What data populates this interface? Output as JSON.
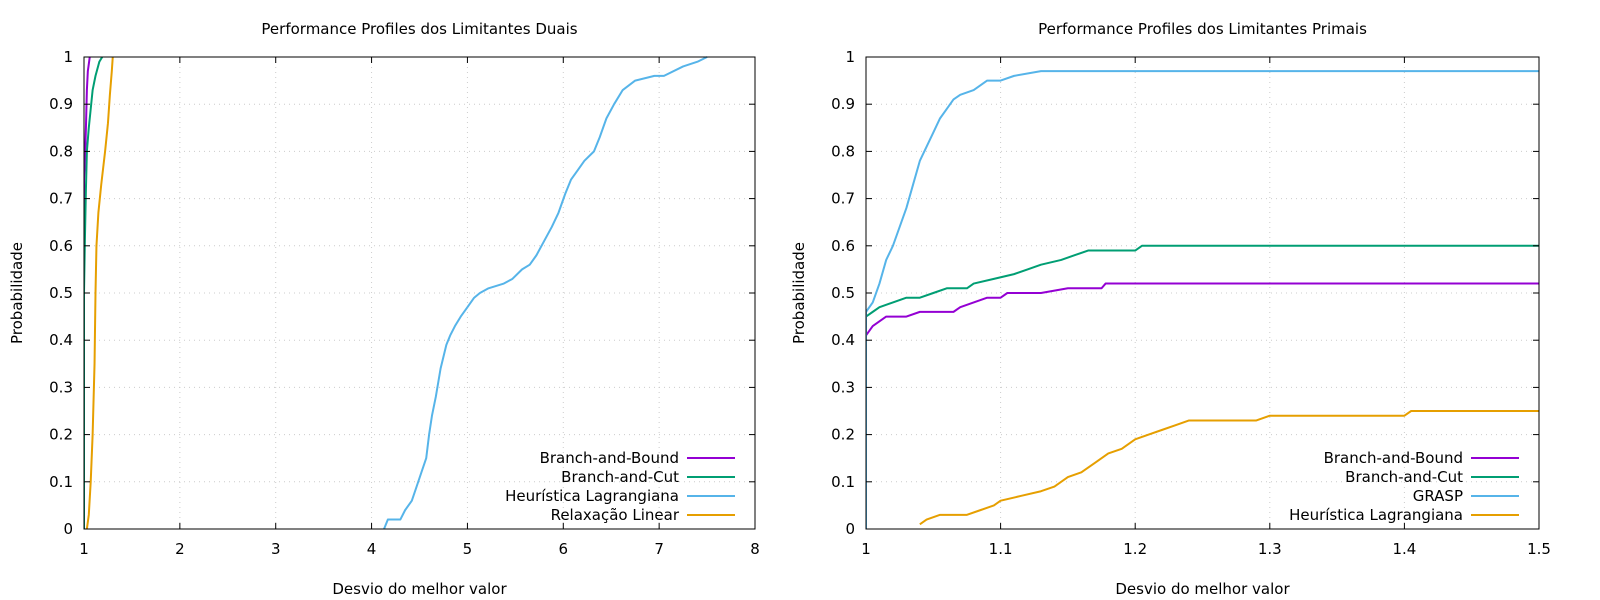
{
  "chart_data": [
    {
      "type": "line",
      "title": "Performance Profiles dos Limitantes Duais",
      "xlabel": "Desvio do melhor valor",
      "ylabel": "Probabilidade",
      "xlim": [
        1,
        8
      ],
      "ylim": [
        0,
        1
      ],
      "xticks": [
        "1",
        "2",
        "3",
        "4",
        "5",
        "6",
        "7",
        "8"
      ],
      "yticks": [
        "0",
        "0.1",
        "0.2",
        "0.3",
        "0.4",
        "0.5",
        "0.6",
        "0.7",
        "0.8",
        "0.9",
        "1"
      ],
      "grid": true,
      "legend_position": "bottom-right",
      "series": [
        {
          "name": "Branch-and-Bound",
          "color": "#9400d3",
          "points": [
            [
              1.0,
              0.0
            ],
            [
              1.0,
              0.74
            ],
            [
              1.01,
              0.78
            ],
            [
              1.02,
              0.85
            ],
            [
              1.03,
              0.93
            ],
            [
              1.04,
              0.97
            ],
            [
              1.06,
              1.0
            ]
          ]
        },
        {
          "name": "Branch-and-Cut",
          "color": "#009e73",
          "points": [
            [
              1.0,
              0.0
            ],
            [
              1.0,
              0.5
            ],
            [
              1.01,
              0.62
            ],
            [
              1.02,
              0.72
            ],
            [
              1.03,
              0.8
            ],
            [
              1.05,
              0.85
            ],
            [
              1.07,
              0.89
            ],
            [
              1.09,
              0.93
            ],
            [
              1.12,
              0.96
            ],
            [
              1.16,
              0.99
            ],
            [
              1.19,
              1.0
            ]
          ]
        },
        {
          "name": "Heurística Lagrangiana",
          "color": "#56b4e9",
          "points": [
            [
              4.13,
              0.0
            ],
            [
              4.17,
              0.02
            ],
            [
              4.3,
              0.02
            ],
            [
              4.35,
              0.04
            ],
            [
              4.42,
              0.06
            ],
            [
              4.47,
              0.09
            ],
            [
              4.52,
              0.12
            ],
            [
              4.57,
              0.15
            ],
            [
              4.6,
              0.2
            ],
            [
              4.63,
              0.24
            ],
            [
              4.67,
              0.28
            ],
            [
              4.72,
              0.34
            ],
            [
              4.78,
              0.39
            ],
            [
              4.82,
              0.41
            ],
            [
              4.87,
              0.43
            ],
            [
              4.93,
              0.45
            ],
            [
              5.0,
              0.47
            ],
            [
              5.07,
              0.49
            ],
            [
              5.13,
              0.5
            ],
            [
              5.22,
              0.51
            ],
            [
              5.38,
              0.52
            ],
            [
              5.47,
              0.53
            ],
            [
              5.57,
              0.55
            ],
            [
              5.65,
              0.56
            ],
            [
              5.72,
              0.58
            ],
            [
              5.8,
              0.61
            ],
            [
              5.88,
              0.64
            ],
            [
              5.95,
              0.67
            ],
            [
              6.02,
              0.71
            ],
            [
              6.08,
              0.74
            ],
            [
              6.15,
              0.76
            ],
            [
              6.22,
              0.78
            ],
            [
              6.32,
              0.8
            ],
            [
              6.38,
              0.83
            ],
            [
              6.45,
              0.87
            ],
            [
              6.53,
              0.9
            ],
            [
              6.62,
              0.93
            ],
            [
              6.75,
              0.95
            ],
            [
              6.95,
              0.96
            ],
            [
              7.05,
              0.96
            ],
            [
              7.25,
              0.98
            ],
            [
              7.4,
              0.99
            ],
            [
              7.5,
              1.0
            ]
          ]
        },
        {
          "name": "Relaxação Linear",
          "color": "#e69f00",
          "points": [
            [
              1.03,
              0.0
            ],
            [
              1.05,
              0.03
            ],
            [
              1.07,
              0.1
            ],
            [
              1.09,
              0.2
            ],
            [
              1.11,
              0.35
            ],
            [
              1.12,
              0.5
            ],
            [
              1.13,
              0.6
            ],
            [
              1.15,
              0.67
            ],
            [
              1.18,
              0.73
            ],
            [
              1.22,
              0.8
            ],
            [
              1.25,
              0.86
            ],
            [
              1.27,
              0.92
            ],
            [
              1.29,
              0.97
            ],
            [
              1.3,
              1.0
            ]
          ]
        }
      ]
    },
    {
      "type": "line",
      "title": "Performance Profiles dos Limitantes Primais",
      "xlabel": "Desvio do melhor valor",
      "ylabel": "Probabilidade",
      "xlim": [
        1,
        1.5
      ],
      "ylim": [
        0,
        1
      ],
      "xticks": [
        "1",
        "1.1",
        "1.2",
        "1.3",
        "1.4",
        "1.5"
      ],
      "yticks": [
        "0",
        "0.1",
        "0.2",
        "0.3",
        "0.4",
        "0.5",
        "0.6",
        "0.7",
        "0.8",
        "0.9",
        "1"
      ],
      "grid": true,
      "legend_position": "bottom-right",
      "series": [
        {
          "name": "Branch-and-Bound",
          "color": "#9400d3",
          "points": [
            [
              1.0,
              0.0
            ],
            [
              1.0,
              0.41
            ],
            [
              1.005,
              0.43
            ],
            [
              1.01,
              0.44
            ],
            [
              1.015,
              0.45
            ],
            [
              1.03,
              0.45
            ],
            [
              1.04,
              0.46
            ],
            [
              1.065,
              0.46
            ],
            [
              1.07,
              0.47
            ],
            [
              1.08,
              0.48
            ],
            [
              1.09,
              0.49
            ],
            [
              1.1,
              0.49
            ],
            [
              1.105,
              0.5
            ],
            [
              1.13,
              0.5
            ],
            [
              1.15,
              0.51
            ],
            [
              1.175,
              0.51
            ],
            [
              1.178,
              0.52
            ],
            [
              1.5,
              0.52
            ]
          ]
        },
        {
          "name": "Branch-and-Cut",
          "color": "#009e73",
          "points": [
            [
              1.0,
              0.0
            ],
            [
              1.0,
              0.45
            ],
            [
              1.005,
              0.46
            ],
            [
              1.01,
              0.47
            ],
            [
              1.02,
              0.48
            ],
            [
              1.03,
              0.49
            ],
            [
              1.04,
              0.49
            ],
            [
              1.05,
              0.5
            ],
            [
              1.06,
              0.51
            ],
            [
              1.075,
              0.51
            ],
            [
              1.08,
              0.52
            ],
            [
              1.095,
              0.53
            ],
            [
              1.11,
              0.54
            ],
            [
              1.12,
              0.55
            ],
            [
              1.13,
              0.56
            ],
            [
              1.145,
              0.57
            ],
            [
              1.155,
              0.58
            ],
            [
              1.165,
              0.59
            ],
            [
              1.2,
              0.59
            ],
            [
              1.205,
              0.6
            ],
            [
              1.5,
              0.6
            ]
          ]
        },
        {
          "name": "GRASP",
          "color": "#56b4e9",
          "points": [
            [
              1.0,
              0.0
            ],
            [
              1.0,
              0.46
            ],
            [
              1.005,
              0.48
            ],
            [
              1.01,
              0.52
            ],
            [
              1.015,
              0.57
            ],
            [
              1.02,
              0.6
            ],
            [
              1.025,
              0.64
            ],
            [
              1.03,
              0.68
            ],
            [
              1.035,
              0.73
            ],
            [
              1.04,
              0.78
            ],
            [
              1.045,
              0.81
            ],
            [
              1.05,
              0.84
            ],
            [
              1.055,
              0.87
            ],
            [
              1.06,
              0.89
            ],
            [
              1.065,
              0.91
            ],
            [
              1.07,
              0.92
            ],
            [
              1.08,
              0.93
            ],
            [
              1.09,
              0.95
            ],
            [
              1.1,
              0.95
            ],
            [
              1.11,
              0.96
            ],
            [
              1.13,
              0.97
            ],
            [
              1.5,
              0.97
            ]
          ]
        },
        {
          "name": "Heurística Lagrangiana",
          "color": "#e69f00",
          "points": [
            [
              1.04,
              0.01
            ],
            [
              1.045,
              0.02
            ],
            [
              1.055,
              0.03
            ],
            [
              1.075,
              0.03
            ],
            [
              1.085,
              0.04
            ],
            [
              1.095,
              0.05
            ],
            [
              1.1,
              0.06
            ],
            [
              1.115,
              0.07
            ],
            [
              1.13,
              0.08
            ],
            [
              1.14,
              0.09
            ],
            [
              1.15,
              0.11
            ],
            [
              1.16,
              0.12
            ],
            [
              1.17,
              0.14
            ],
            [
              1.18,
              0.16
            ],
            [
              1.19,
              0.17
            ],
            [
              1.2,
              0.19
            ],
            [
              1.21,
              0.2
            ],
            [
              1.22,
              0.21
            ],
            [
              1.23,
              0.22
            ],
            [
              1.24,
              0.23
            ],
            [
              1.29,
              0.23
            ],
            [
              1.3,
              0.24
            ],
            [
              1.4,
              0.24
            ],
            [
              1.405,
              0.25
            ],
            [
              1.5,
              0.25
            ]
          ]
        }
      ]
    }
  ]
}
